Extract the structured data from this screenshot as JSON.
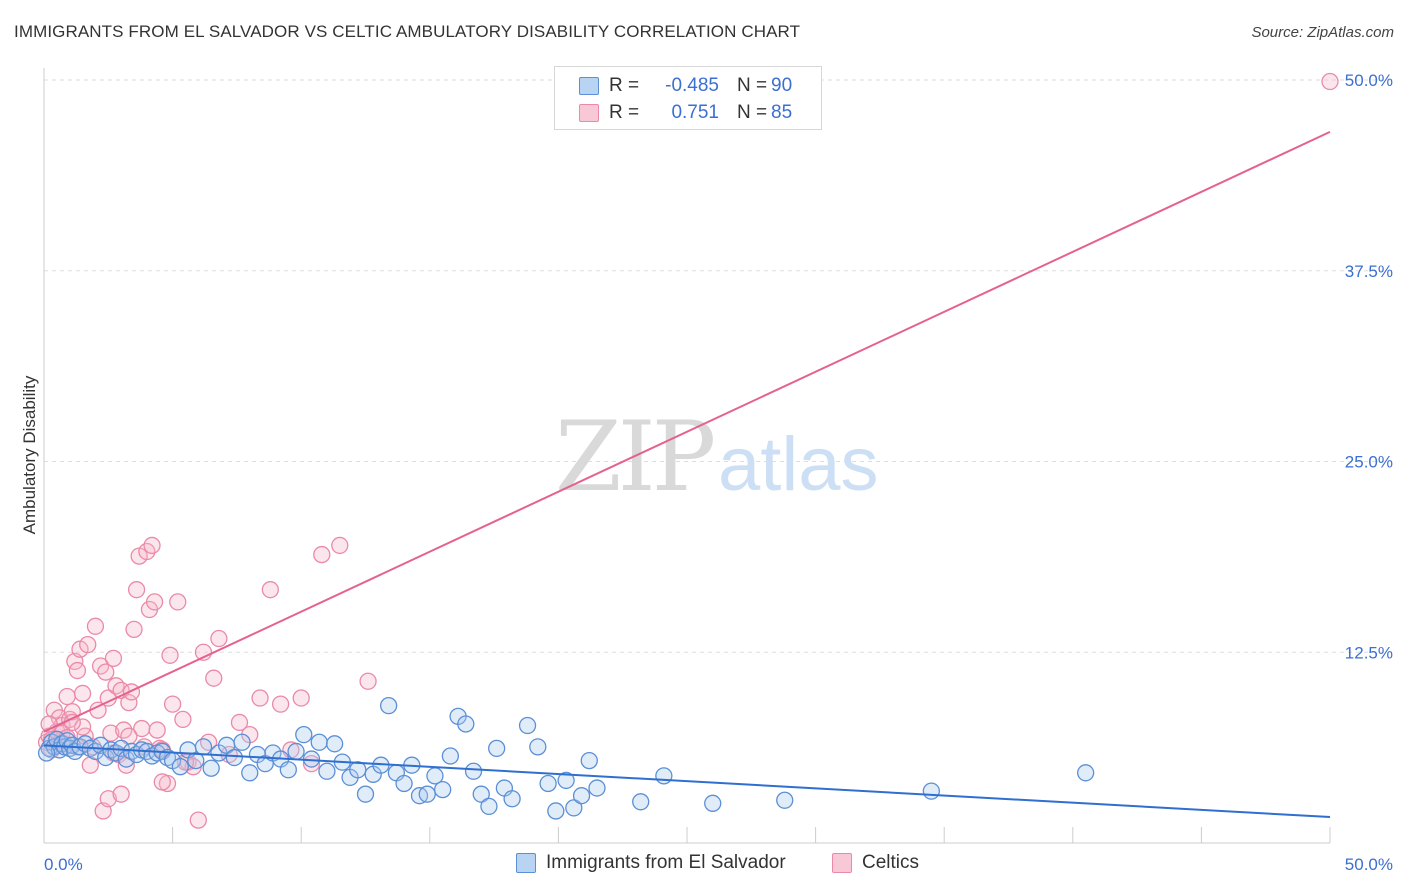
{
  "title": "IMMIGRANTS FROM EL SALVADOR VS CELTIC AMBULATORY DISABILITY CORRELATION CHART",
  "source": "Source: ZipAtlas.com",
  "watermark": {
    "zip": "ZIP",
    "atlas": "atlas"
  },
  "colors": {
    "blue_fill": "#a9c8ee",
    "blue_stroke": "#5b8fd6",
    "blue_line": "#2f6fd0",
    "pink_fill": "#f5b8cb",
    "pink_stroke": "#ea8aa8",
    "pink_line": "#e5628e",
    "tick_text": "#3b6fd1",
    "grid": "#dddddd"
  },
  "legend_top": [
    {
      "series": "blue",
      "r_label": "R =",
      "r_value": "-0.485",
      "n_label": "N =",
      "n_value": "90"
    },
    {
      "series": "pink",
      "r_label": "R =",
      "r_value": "0.751",
      "n_label": "N =",
      "n_value": "85"
    }
  ],
  "chart_data": {
    "type": "scatter",
    "title": "IMMIGRANTS FROM EL SALVADOR VS CELTIC AMBULATORY DISABILITY CORRELATION CHART",
    "xlabel": "",
    "ylabel": "Ambulatory Disability",
    "xlim": [
      0,
      50
    ],
    "ylim": [
      0,
      50
    ],
    "x_tick_labels": [
      "0.0%",
      "50.0%"
    ],
    "y_ticks": [
      12.5,
      25.0,
      37.5,
      50.0
    ],
    "y_tick_labels": [
      "12.5%",
      "25.0%",
      "37.5%",
      "50.0%"
    ],
    "legend": [
      "Immigrants from El Salvador",
      "Celtics"
    ],
    "series": [
      {
        "name": "Immigrants from El Salvador",
        "color": "blue",
        "trend": {
          "x0": 0,
          "y0": 6.4,
          "x1": 50,
          "y1": 1.7
        },
        "points": [
          [
            0.2,
            6.2
          ],
          [
            0.3,
            6.6
          ],
          [
            0.4,
            6.3
          ],
          [
            0.5,
            6.8
          ],
          [
            0.6,
            6.1
          ],
          [
            0.7,
            6.5
          ],
          [
            0.8,
            6.3
          ],
          [
            0.9,
            6.7
          ],
          [
            1.0,
            6.2
          ],
          [
            1.1,
            6.4
          ],
          [
            1.2,
            6.0
          ],
          [
            1.4,
            6.3
          ],
          [
            1.6,
            6.5
          ],
          [
            1.8,
            6.2
          ],
          [
            2.0,
            6.0
          ],
          [
            2.2,
            6.4
          ],
          [
            2.4,
            5.6
          ],
          [
            2.6,
            6.1
          ],
          [
            2.8,
            5.9
          ],
          [
            3.0,
            6.2
          ],
          [
            3.2,
            5.5
          ],
          [
            3.4,
            6.0
          ],
          [
            3.6,
            5.8
          ],
          [
            3.8,
            6.1
          ],
          [
            4.0,
            6.0
          ],
          [
            4.2,
            5.7
          ],
          [
            4.4,
            5.9
          ],
          [
            4.6,
            6.0
          ],
          [
            4.8,
            5.6
          ],
          [
            5.0,
            5.4
          ],
          [
            5.3,
            5.0
          ],
          [
            5.6,
            6.1
          ],
          [
            5.9,
            5.4
          ],
          [
            6.2,
            6.3
          ],
          [
            6.5,
            4.9
          ],
          [
            6.8,
            5.9
          ],
          [
            7.1,
            6.4
          ],
          [
            7.4,
            5.6
          ],
          [
            7.7,
            6.6
          ],
          [
            8.0,
            4.6
          ],
          [
            8.3,
            5.8
          ],
          [
            8.6,
            5.2
          ],
          [
            8.9,
            5.9
          ],
          [
            9.2,
            5.5
          ],
          [
            9.5,
            4.8
          ],
          [
            9.8,
            6.0
          ],
          [
            10.1,
            7.1
          ],
          [
            10.4,
            5.5
          ],
          [
            10.7,
            6.6
          ],
          [
            11.0,
            4.7
          ],
          [
            11.3,
            6.5
          ],
          [
            11.6,
            5.3
          ],
          [
            11.9,
            4.3
          ],
          [
            12.2,
            4.8
          ],
          [
            12.5,
            3.2
          ],
          [
            12.8,
            4.5
          ],
          [
            13.1,
            5.1
          ],
          [
            13.4,
            9.0
          ],
          [
            13.7,
            4.6
          ],
          [
            14.0,
            3.9
          ],
          [
            14.3,
            5.1
          ],
          [
            14.6,
            3.1
          ],
          [
            14.9,
            3.2
          ],
          [
            15.2,
            4.4
          ],
          [
            15.5,
            3.5
          ],
          [
            15.8,
            5.7
          ],
          [
            16.1,
            8.3
          ],
          [
            16.4,
            7.8
          ],
          [
            16.7,
            4.7
          ],
          [
            17.0,
            3.2
          ],
          [
            17.3,
            2.4
          ],
          [
            17.6,
            6.2
          ],
          [
            17.9,
            3.6
          ],
          [
            18.2,
            2.9
          ],
          [
            18.8,
            7.7
          ],
          [
            19.2,
            6.3
          ],
          [
            19.6,
            3.9
          ],
          [
            19.9,
            2.1
          ],
          [
            20.3,
            4.1
          ],
          [
            20.6,
            2.3
          ],
          [
            20.9,
            3.1
          ],
          [
            21.2,
            5.4
          ],
          [
            21.5,
            3.6
          ],
          [
            23.2,
            2.7
          ],
          [
            24.1,
            4.4
          ],
          [
            26.0,
            2.6
          ],
          [
            28.8,
            2.8
          ],
          [
            34.5,
            3.4
          ],
          [
            40.5,
            4.6
          ],
          [
            0.1,
            5.9
          ]
        ]
      },
      {
        "name": "Celtics",
        "color": "pink",
        "trend": {
          "x0": 0,
          "y0": 7.3,
          "x1": 50,
          "y1": 46.6
        },
        "points": [
          [
            0.1,
            6.6
          ],
          [
            0.2,
            7.0
          ],
          [
            0.3,
            6.8
          ],
          [
            0.3,
            6.1
          ],
          [
            0.4,
            8.7
          ],
          [
            0.5,
            7.3
          ],
          [
            0.6,
            8.2
          ],
          [
            0.7,
            7.7
          ],
          [
            0.8,
            6.5
          ],
          [
            0.9,
            9.6
          ],
          [
            1.0,
            8.1
          ],
          [
            1.1,
            8.6
          ],
          [
            1.2,
            11.9
          ],
          [
            1.3,
            11.3
          ],
          [
            1.4,
            12.7
          ],
          [
            1.5,
            9.8
          ],
          [
            1.6,
            7.0
          ],
          [
            1.7,
            13.0
          ],
          [
            1.8,
            5.1
          ],
          [
            1.9,
            6.3
          ],
          [
            2.0,
            14.2
          ],
          [
            2.1,
            8.7
          ],
          [
            2.2,
            11.6
          ],
          [
            2.3,
            2.1
          ],
          [
            2.4,
            11.2
          ],
          [
            2.5,
            9.5
          ],
          [
            2.6,
            7.2
          ],
          [
            2.7,
            12.1
          ],
          [
            2.8,
            10.3
          ],
          [
            2.9,
            5.8
          ],
          [
            3.0,
            10.0
          ],
          [
            3.1,
            7.4
          ],
          [
            3.2,
            5.1
          ],
          [
            3.3,
            9.2
          ],
          [
            3.4,
            9.9
          ],
          [
            3.5,
            14.0
          ],
          [
            3.6,
            16.6
          ],
          [
            3.7,
            18.8
          ],
          [
            3.8,
            7.5
          ],
          [
            3.9,
            6.3
          ],
          [
            4.0,
            19.1
          ],
          [
            4.1,
            15.3
          ],
          [
            4.2,
            19.5
          ],
          [
            4.3,
            15.8
          ],
          [
            4.4,
            7.4
          ],
          [
            4.5,
            6.2
          ],
          [
            4.6,
            6.1
          ],
          [
            4.8,
            3.9
          ],
          [
            4.9,
            12.3
          ],
          [
            5.0,
            9.1
          ],
          [
            5.2,
            15.8
          ],
          [
            5.4,
            8.1
          ],
          [
            5.6,
            5.3
          ],
          [
            5.8,
            5.0
          ],
          [
            6.0,
            1.5
          ],
          [
            6.2,
            12.5
          ],
          [
            6.4,
            6.6
          ],
          [
            6.6,
            10.8
          ],
          [
            6.8,
            13.4
          ],
          [
            7.2,
            5.8
          ],
          [
            7.6,
            7.9
          ],
          [
            8.0,
            7.1
          ],
          [
            8.4,
            9.5
          ],
          [
            8.8,
            16.6
          ],
          [
            9.2,
            9.1
          ],
          [
            9.6,
            6.1
          ],
          [
            10.0,
            9.5
          ],
          [
            10.4,
            5.2
          ],
          [
            10.8,
            18.9
          ],
          [
            11.5,
            19.5
          ],
          [
            12.6,
            10.6
          ],
          [
            2.5,
            2.9
          ],
          [
            3.0,
            3.2
          ],
          [
            1.5,
            7.6
          ],
          [
            0.5,
            6.4
          ],
          [
            0.7,
            7.2
          ],
          [
            0.9,
            6.9
          ],
          [
            1.1,
            7.9
          ],
          [
            1.3,
            6.3
          ],
          [
            0.2,
            7.8
          ],
          [
            4.6,
            4.0
          ],
          [
            5.5,
            5.3
          ],
          [
            3.3,
            7.0
          ],
          [
            2.7,
            5.9
          ],
          [
            50.0,
            49.9
          ]
        ]
      }
    ]
  },
  "bottom_legend": [
    {
      "series": "blue",
      "label": "Immigrants from El Salvador"
    },
    {
      "series": "pink",
      "label": "Celtics"
    }
  ]
}
